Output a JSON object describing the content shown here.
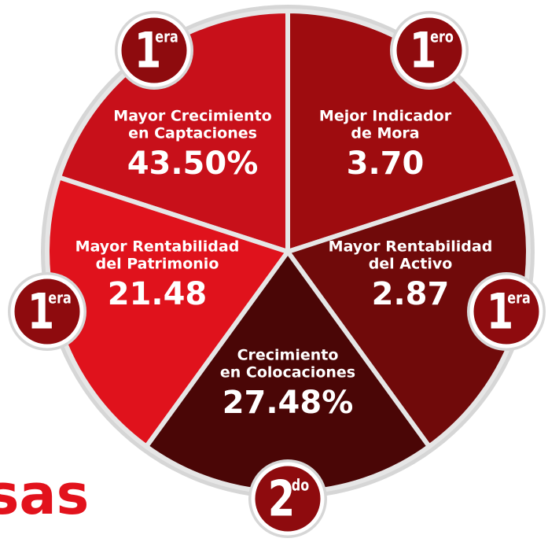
{
  "segments": [
    {
      "label": [
        "Mayor Crecimiento",
        "en Captaciones"
      ],
      "value": "43.50%",
      "rank": "1",
      "suffix": "era"
    },
    {
      "label": [
        "Mejor Indicador",
        "de Mora"
      ],
      "value": "3.70",
      "rank": "1",
      "suffix": "ero"
    },
    {
      "label": [
        "Mayor Rentabilidad",
        "del Activo"
      ],
      "value": "2.87",
      "rank": "1",
      "suffix": "era"
    },
    {
      "label": [
        "Crecimiento",
        "en Colocaciones"
      ],
      "value": "27.48%",
      "rank": "2",
      "suffix": "do"
    },
    {
      "label": [
        "Mayor Rentabilidad",
        "del Patrimonio"
      ],
      "value": "21.48",
      "rank": "1",
      "suffix": "era"
    }
  ],
  "footer_text": "sas"
}
